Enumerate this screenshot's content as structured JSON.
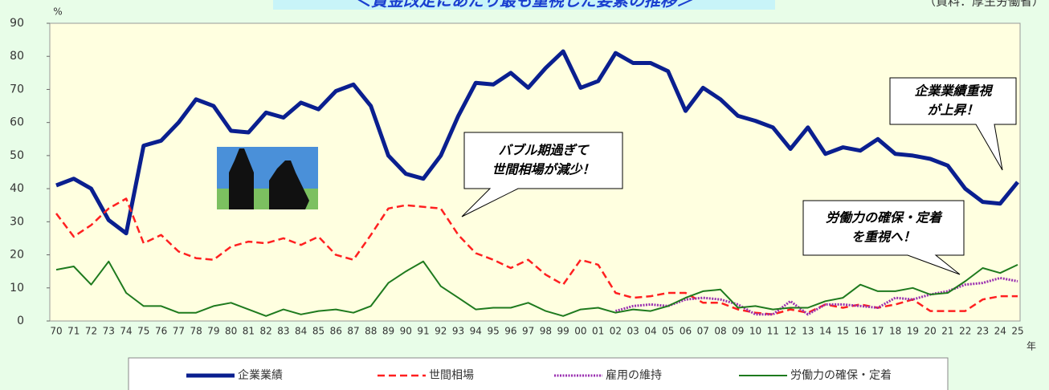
{
  "chart_data": {
    "type": "line",
    "title": "＜賃金改定にあたり最も重視した要素の推移＞",
    "source": "（資料：厚生労働省）",
    "y_unit": "%",
    "x_unit": "年",
    "categories": [
      "70",
      "71",
      "72",
      "73",
      "74",
      "75",
      "76",
      "77",
      "78",
      "79",
      "80",
      "81",
      "82",
      "83",
      "84",
      "85",
      "86",
      "87",
      "88",
      "89",
      "90",
      "91",
      "92",
      "93",
      "94",
      "95",
      "96",
      "97",
      "98",
      "99",
      "00",
      "01",
      "02",
      "03",
      "04",
      "05",
      "06",
      "07",
      "08",
      "09",
      "10",
      "11",
      "12",
      "13",
      "14",
      "15",
      "16",
      "17",
      "18",
      "19",
      "20",
      "21",
      "22",
      "23",
      "24",
      "25"
    ],
    "series": [
      {
        "name": "企業業績",
        "color": "#0a1f8f",
        "style": "solid",
        "width": 5,
        "values": [
          41,
          43,
          40,
          30.5,
          26.5,
          53,
          54.5,
          60,
          67,
          65,
          57.5,
          57,
          63,
          61.5,
          66,
          64,
          69.5,
          71.5,
          65,
          50,
          44.5,
          43,
          50,
          62,
          72,
          71.5,
          75,
          70.5,
          76.5,
          81.5,
          70.5,
          72.5,
          81,
          78,
          78,
          75.5,
          63.5,
          70.5,
          67,
          62,
          60.5,
          58.5,
          52,
          58.5,
          50.5,
          52.5,
          51.5,
          55,
          50.5,
          50,
          49,
          47,
          40,
          36,
          35.5,
          42
        ]
      },
      {
        "name": "世間相場",
        "color": "#ff2020",
        "style": "dashed",
        "width": 2.5,
        "values": [
          32.5,
          25.5,
          29,
          34,
          37,
          23.5,
          26,
          21,
          19,
          18.5,
          22.5,
          24,
          23.5,
          25,
          23,
          25.5,
          20,
          18.5,
          26,
          34,
          35,
          34.5,
          34,
          26,
          20.5,
          18.5,
          16,
          18.5,
          14,
          11,
          18.5,
          17,
          8.5,
          7,
          7.5,
          8.5,
          8.5,
          5.5,
          5.5,
          3.5,
          2.5,
          2,
          3.5,
          2.5,
          5,
          4,
          5,
          4,
          5,
          6.5,
          3,
          3,
          3,
          6.5,
          7.5,
          7.5
        ]
      },
      {
        "name": "雇用の維持",
        "color": "#9a2fb0",
        "style": "dotted",
        "width": 3,
        "values": [
          null,
          null,
          null,
          null,
          null,
          null,
          null,
          null,
          null,
          null,
          null,
          null,
          null,
          null,
          null,
          null,
          null,
          null,
          null,
          null,
          null,
          null,
          null,
          null,
          null,
          null,
          null,
          null,
          null,
          null,
          null,
          null,
          3,
          4.5,
          5,
          4.5,
          6.5,
          7,
          6.5,
          5,
          2,
          2,
          6,
          2,
          5,
          5,
          4.5,
          4,
          7,
          6.5,
          8,
          9,
          11,
          11.5,
          13,
          12
        ]
      },
      {
        "name": "労働力の確保・定着",
        "color": "#1e7a1e",
        "style": "solid",
        "width": 2,
        "values": [
          15.5,
          16.5,
          11,
          18,
          8.5,
          4.5,
          4.5,
          2.5,
          2.5,
          4.5,
          5.5,
          3.5,
          1.5,
          3.5,
          2,
          3,
          3.5,
          2.5,
          4.5,
          11.5,
          15,
          18,
          10.5,
          7,
          3.5,
          4,
          4,
          5.5,
          3,
          1.5,
          3.5,
          4,
          2.5,
          3.5,
          3,
          4.5,
          7,
          9,
          9.5,
          4,
          4.5,
          3.5,
          4,
          4,
          6,
          7,
          11,
          9,
          9,
          10,
          8,
          8.5,
          12,
          16,
          14.5,
          17
        ]
      }
    ],
    "ylim": [
      0,
      90
    ],
    "yticks": [
      0,
      10,
      20,
      30,
      40,
      50,
      60,
      70,
      80,
      90
    ],
    "annotations": [
      {
        "lines": [
          "企業業績重視",
          "が上昇！"
        ]
      },
      {
        "lines": [
          "バブル期過ぎて",
          "世間相場が減少！"
        ]
      },
      {
        "lines": [
          "労働力の確保・定着",
          "を重視へ！"
        ]
      }
    ]
  }
}
